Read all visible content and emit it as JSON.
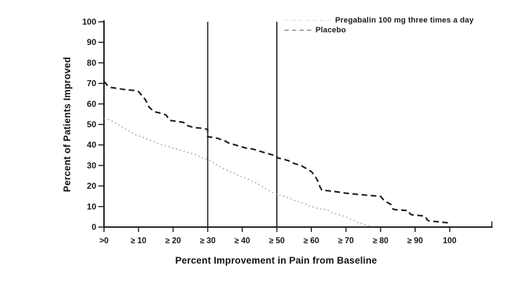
{
  "chart_data": {
    "type": "line",
    "title": "",
    "xlabel": "Percent Improvement in Pain from Baseline",
    "ylabel": "Percent of Patients Improved",
    "xlim": [
      0,
      100
    ],
    "ylim": [
      0,
      100
    ],
    "grid": false,
    "legend_position": "top-right",
    "x_tick_labels": [
      ">0",
      "≥ 10",
      "≥ 20",
      "≥ 30",
      "≥ 40",
      "≥ 50",
      "≥ 60",
      "≥ 70",
      "≥ 80",
      "≥ 90",
      "100"
    ],
    "x_tick_values": [
      0,
      10,
      20,
      30,
      40,
      50,
      60,
      70,
      80,
      90,
      100
    ],
    "y_tick_values": [
      0,
      10,
      20,
      30,
      40,
      50,
      60,
      70,
      80,
      90,
      100
    ],
    "reference_lines_x": [
      30,
      50
    ],
    "axis_color": "#1a1a1a",
    "series": [
      {
        "name": "Pregabalin 100 mg three times a day",
        "color": "#1c1c1c",
        "style": "dashed",
        "legend_sample_color": "#ececec",
        "points": [
          [
            0,
            71
          ],
          [
            1,
            69
          ],
          [
            2,
            68
          ],
          [
            4,
            67.5
          ],
          [
            6,
            67
          ],
          [
            9,
            66.5
          ],
          [
            10,
            66
          ],
          [
            11,
            64
          ],
          [
            12,
            62
          ],
          [
            13,
            58.5
          ],
          [
            14,
            57
          ],
          [
            15,
            56
          ],
          [
            17,
            55.3
          ],
          [
            18,
            54.5
          ],
          [
            19,
            52
          ],
          [
            21,
            51.5
          ],
          [
            23,
            51
          ],
          [
            24,
            49.5
          ],
          [
            26,
            48.5
          ],
          [
            29,
            48
          ],
          [
            30,
            47.5
          ],
          [
            30,
            44
          ],
          [
            31,
            43.8
          ],
          [
            33,
            43.2
          ],
          [
            34,
            42.5
          ],
          [
            35,
            42
          ],
          [
            36,
            41
          ],
          [
            38,
            40
          ],
          [
            40,
            39
          ],
          [
            41,
            38.5
          ],
          [
            43,
            38
          ],
          [
            45,
            37
          ],
          [
            47,
            36
          ],
          [
            48,
            35.5
          ],
          [
            50,
            34.5
          ],
          [
            50,
            33.8
          ],
          [
            52,
            33
          ],
          [
            54,
            32
          ],
          [
            55,
            31
          ],
          [
            56,
            30.5
          ],
          [
            57,
            30
          ],
          [
            58,
            29
          ],
          [
            59,
            28
          ],
          [
            60,
            27
          ],
          [
            61,
            25
          ],
          [
            62,
            22
          ],
          [
            62.5,
            19.5
          ],
          [
            63,
            18
          ],
          [
            66,
            17.5
          ],
          [
            70,
            16.5
          ],
          [
            73,
            16
          ],
          [
            76,
            15.5
          ],
          [
            80,
            15
          ],
          [
            81,
            13
          ],
          [
            82,
            12
          ],
          [
            83,
            11
          ],
          [
            83.5,
            9
          ],
          [
            84,
            8.5
          ],
          [
            88,
            8
          ],
          [
            88.5,
            6.5
          ],
          [
            89,
            6
          ],
          [
            92,
            5.5
          ],
          [
            93,
            5
          ],
          [
            93.5,
            3.5
          ],
          [
            94,
            3
          ],
          [
            97,
            2.5
          ],
          [
            100,
            2
          ]
        ]
      },
      {
        "name": "Placebo",
        "color": "#b2b2b2",
        "style": "dotted",
        "legend_sample_color": "#a6a6a6",
        "points": [
          [
            0,
            53
          ],
          [
            1,
            52.5
          ],
          [
            2,
            52
          ],
          [
            3,
            51
          ],
          [
            4,
            50
          ],
          [
            5,
            49
          ],
          [
            6,
            48
          ],
          [
            7,
            47
          ],
          [
            8,
            46
          ],
          [
            9,
            45
          ],
          [
            10,
            44.5
          ],
          [
            11,
            44
          ],
          [
            12,
            43
          ],
          [
            13,
            42.5
          ],
          [
            14,
            42
          ],
          [
            15,
            41
          ],
          [
            16,
            40.5
          ],
          [
            17,
            40
          ],
          [
            19,
            39
          ],
          [
            20,
            38.5
          ],
          [
            21,
            38
          ],
          [
            22,
            37.5
          ],
          [
            24,
            36.5
          ],
          [
            25,
            36
          ],
          [
            26,
            35.5
          ],
          [
            27,
            35
          ],
          [
            28,
            34
          ],
          [
            29,
            33.5
          ],
          [
            30,
            33
          ],
          [
            31,
            32
          ],
          [
            32,
            31
          ],
          [
            33,
            30
          ],
          [
            34,
            29
          ],
          [
            35,
            28
          ],
          [
            36,
            27.5
          ],
          [
            37,
            26.5
          ],
          [
            38,
            26
          ],
          [
            39,
            25
          ],
          [
            40,
            24.5
          ],
          [
            41,
            24
          ],
          [
            42,
            23
          ],
          [
            43,
            22
          ],
          [
            44,
            21.5
          ],
          [
            45,
            20.5
          ],
          [
            46,
            19.5
          ],
          [
            47,
            18.5
          ],
          [
            48,
            17.5
          ],
          [
            49,
            16.5
          ],
          [
            50,
            16
          ],
          [
            51,
            15.5
          ],
          [
            52,
            15
          ],
          [
            53,
            14.5
          ],
          [
            54,
            14
          ],
          [
            55,
            13
          ],
          [
            56,
            12.5
          ],
          [
            57,
            12
          ],
          [
            58,
            11.5
          ],
          [
            59,
            10.5
          ],
          [
            60,
            10
          ],
          [
            61,
            9.5
          ],
          [
            62,
            9
          ],
          [
            64,
            8.5
          ],
          [
            65,
            8
          ],
          [
            66,
            7
          ],
          [
            67,
            6.5
          ],
          [
            68,
            6
          ],
          [
            69,
            5.5
          ],
          [
            70,
            5
          ],
          [
            71,
            4
          ],
          [
            72,
            3.5
          ],
          [
            73,
            2.5
          ],
          [
            74,
            2
          ],
          [
            75,
            1.5
          ],
          [
            76,
            1
          ],
          [
            77,
            0.5
          ]
        ]
      }
    ]
  }
}
